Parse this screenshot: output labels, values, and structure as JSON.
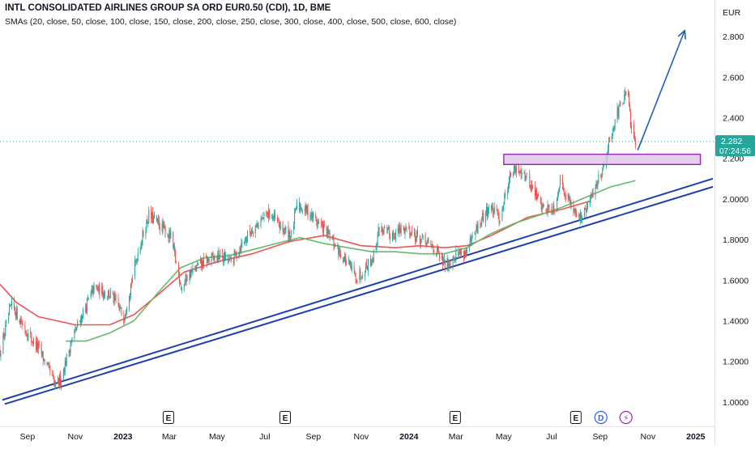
{
  "header": {
    "title": "INTL CONSOLIDATED AIRLINES GROUP SA ORD EUR0.50 (CDI), 1D, BME",
    "smas": "SMAs (20, close, 50, close, 100, close, 150, close, 200, close, 250, close, 300, close, 400, close, 500, close, 600, close)"
  },
  "price_axis": {
    "currency": "EUR",
    "last_price": "2.282",
    "countdown": "07:24:56",
    "last_price_color": "#26a69a"
  },
  "chart_data": {
    "type": "candlestick",
    "title": "INTL CONSOLIDATED AIRLINES GROUP SA ORD EUR0.50 (CDI), 1D, BME",
    "x_ticks": [
      {
        "date": "2022-09-01",
        "label": "Sep",
        "bold": false
      },
      {
        "date": "2022-11-01",
        "label": "Nov",
        "bold": false
      },
      {
        "date": "2023-01-01",
        "label": "2023",
        "bold": true
      },
      {
        "date": "2023-03-01",
        "label": "Mar",
        "bold": false
      },
      {
        "date": "2023-05-01",
        "label": "May",
        "bold": false
      },
      {
        "date": "2023-07-01",
        "label": "Jul",
        "bold": false
      },
      {
        "date": "2023-09-01",
        "label": "Sep",
        "bold": false
      },
      {
        "date": "2023-11-01",
        "label": "Nov",
        "bold": false
      },
      {
        "date": "2024-01-01",
        "label": "2024",
        "bold": true
      },
      {
        "date": "2024-03-01",
        "label": "Mar",
        "bold": false
      },
      {
        "date": "2024-05-01",
        "label": "May",
        "bold": false
      },
      {
        "date": "2024-07-01",
        "label": "Jul",
        "bold": false
      },
      {
        "date": "2024-09-01",
        "label": "Sep",
        "bold": false
      },
      {
        "date": "2024-11-01",
        "label": "Nov",
        "bold": false
      },
      {
        "date": "2025-01-01",
        "label": "2025",
        "bold": true
      }
    ],
    "y_ticks": [
      "1.0000",
      "1.2000",
      "1.4000",
      "1.6000",
      "1.8000",
      "2.0000",
      "2.200",
      "2.400",
      "2.600",
      "2.800"
    ],
    "y_range": [
      0.88,
      2.98
    ],
    "x_range": [
      "2022-07-28",
      "2025-01-25"
    ],
    "price_path": [
      [
        "2022-07-28",
        1.25
      ],
      [
        "2022-08-12",
        1.48
      ],
      [
        "2022-08-19",
        1.43
      ],
      [
        "2022-09-02",
        1.33
      ],
      [
        "2022-09-16",
        1.26
      ],
      [
        "2022-09-30",
        1.14
      ],
      [
        "2022-10-07",
        1.07
      ],
      [
        "2022-10-14",
        1.12
      ],
      [
        "2022-10-28",
        1.31
      ],
      [
        "2022-11-11",
        1.44
      ],
      [
        "2022-11-25",
        1.56
      ],
      [
        "2022-12-16",
        1.53
      ],
      [
        "2023-01-02",
        1.42
      ],
      [
        "2023-01-20",
        1.74
      ],
      [
        "2023-02-03",
        1.92
      ],
      [
        "2023-02-17",
        1.87
      ],
      [
        "2023-03-03",
        1.81
      ],
      [
        "2023-03-17",
        1.56
      ],
      [
        "2023-03-24",
        1.62
      ],
      [
        "2023-04-14",
        1.69
      ],
      [
        "2023-05-05",
        1.72
      ],
      [
        "2023-05-19",
        1.69
      ],
      [
        "2023-06-02",
        1.78
      ],
      [
        "2023-06-16",
        1.86
      ],
      [
        "2023-07-07",
        1.93
      ],
      [
        "2023-07-21",
        1.86
      ],
      [
        "2023-08-04",
        1.82
      ],
      [
        "2023-08-11",
        1.97
      ],
      [
        "2023-08-25",
        1.94
      ],
      [
        "2023-09-15",
        1.85
      ],
      [
        "2023-10-06",
        1.73
      ],
      [
        "2023-10-27",
        1.61
      ],
      [
        "2023-11-17",
        1.72
      ],
      [
        "2023-11-24",
        1.86
      ],
      [
        "2023-12-08",
        1.82
      ],
      [
        "2023-12-29",
        1.86
      ],
      [
        "2024-01-12",
        1.81
      ],
      [
        "2024-02-02",
        1.76
      ],
      [
        "2024-02-16",
        1.67
      ],
      [
        "2024-03-01",
        1.73
      ],
      [
        "2024-03-15",
        1.74
      ],
      [
        "2024-03-29",
        1.86
      ],
      [
        "2024-04-12",
        1.96
      ],
      [
        "2024-04-26",
        1.91
      ],
      [
        "2024-05-10",
        2.13
      ],
      [
        "2024-05-24",
        2.15
      ],
      [
        "2024-06-07",
        2.05
      ],
      [
        "2024-06-21",
        1.95
      ],
      [
        "2024-07-05",
        1.96
      ],
      [
        "2024-07-12",
        2.09
      ],
      [
        "2024-07-26",
        1.97
      ],
      [
        "2024-08-09",
        1.9
      ],
      [
        "2024-08-23",
        2.03
      ],
      [
        "2024-09-06",
        2.17
      ],
      [
        "2024-09-20",
        2.4
      ],
      [
        "2024-10-04",
        2.51
      ],
      [
        "2024-10-07",
        2.5
      ],
      [
        "2024-10-11",
        2.33
      ],
      [
        "2024-10-16",
        2.28
      ]
    ],
    "series": [
      {
        "color": "#ef5350",
        "points": [
          [
            "2022-07-28",
            1.58
          ],
          [
            "2022-08-18",
            1.49
          ],
          [
            "2022-09-15",
            1.42
          ],
          [
            "2022-11-01",
            1.38
          ],
          [
            "2022-12-15",
            1.38
          ],
          [
            "2023-01-15",
            1.43
          ],
          [
            "2023-02-15",
            1.53
          ],
          [
            "2023-03-20",
            1.64
          ],
          [
            "2023-05-01",
            1.69
          ],
          [
            "2023-06-15",
            1.73
          ],
          [
            "2023-08-01",
            1.79
          ],
          [
            "2023-09-15",
            1.82
          ],
          [
            "2023-11-01",
            1.77
          ],
          [
            "2023-12-15",
            1.76
          ],
          [
            "2024-01-15",
            1.77
          ],
          [
            "2024-02-15",
            1.76
          ],
          [
            "2024-03-15",
            1.77
          ],
          [
            "2024-04-15",
            1.82
          ],
          [
            "2024-06-01",
            1.91
          ],
          [
            "2024-07-15",
            1.95
          ],
          [
            "2024-08-20",
            1.99
          ]
        ]
      },
      {
        "color": "#66bb6a",
        "points": [
          [
            "2022-10-20",
            1.3
          ],
          [
            "2022-11-15",
            1.3
          ],
          [
            "2022-12-15",
            1.34
          ],
          [
            "2023-01-15",
            1.4
          ],
          [
            "2023-02-15",
            1.54
          ],
          [
            "2023-03-15",
            1.66
          ],
          [
            "2023-04-15",
            1.71
          ],
          [
            "2023-05-15",
            1.72
          ],
          [
            "2023-06-15",
            1.75
          ],
          [
            "2023-07-15",
            1.78
          ],
          [
            "2023-08-15",
            1.81
          ],
          [
            "2023-09-15",
            1.78
          ],
          [
            "2023-10-15",
            1.76
          ],
          [
            "2023-11-15",
            1.74
          ],
          [
            "2023-12-15",
            1.74
          ],
          [
            "2024-01-15",
            1.73
          ],
          [
            "2024-02-15",
            1.73
          ],
          [
            "2024-03-15",
            1.76
          ],
          [
            "2024-04-15",
            1.83
          ],
          [
            "2024-05-15",
            1.88
          ],
          [
            "2024-06-15",
            1.92
          ],
          [
            "2024-07-15",
            1.96
          ],
          [
            "2024-08-15",
            2.01
          ],
          [
            "2024-09-15",
            2.06
          ],
          [
            "2024-10-16",
            2.09
          ]
        ]
      }
    ],
    "annotations": {
      "trendlines": [
        {
          "color": "#1e40af",
          "start": [
            "2022-07-31",
            1.01
          ],
          "end": [
            "2025-01-23",
            2.1
          ]
        },
        {
          "color": "#1e40af",
          "start": [
            "2022-08-03",
            0.99
          ],
          "end": [
            "2025-01-23",
            2.06
          ]
        }
      ],
      "zone": {
        "start": "2024-05-01",
        "end": "2025-01-07",
        "top": 2.22,
        "bottom": 2.17,
        "fill": "#e3c6ec",
        "stroke": "#9c27b0"
      },
      "arrow": {
        "color": "#1e5bc6",
        "start": [
          "2024-10-19",
          2.24
        ],
        "end": [
          "2024-12-18",
          2.83
        ]
      },
      "last_price_line": 2.282
    },
    "events": [
      {
        "date": "2023-02-28",
        "label": "E",
        "kind": "earnings"
      },
      {
        "date": "2023-07-27",
        "label": "E",
        "kind": "earnings"
      },
      {
        "date": "2024-02-29",
        "label": "E",
        "kind": "earnings"
      },
      {
        "date": "2024-08-01",
        "label": "E",
        "kind": "earnings"
      },
      {
        "date": "2024-09-02",
        "label": "D",
        "kind": "dividend"
      },
      {
        "date": "2024-10-04",
        "label": "⚡",
        "kind": "split"
      }
    ]
  }
}
